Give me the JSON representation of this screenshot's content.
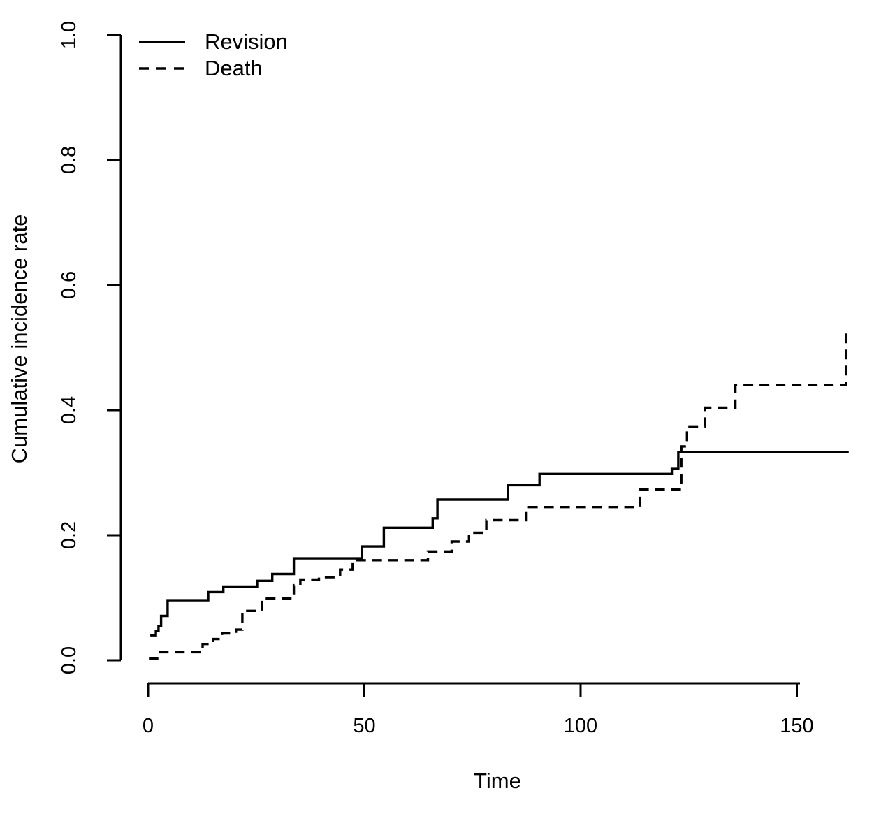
{
  "chart_data": {
    "type": "line",
    "subtype": "step",
    "title": "",
    "xlabel": "Time",
    "ylabel": "Cumulative incidence rate",
    "xlim": [
      0,
      162
    ],
    "ylim": [
      0,
      1
    ],
    "x_ticks": [
      0,
      50,
      100,
      150
    ],
    "y_ticks": [
      {
        "value": 0.0,
        "label": "0.0"
      },
      {
        "value": 0.2,
        "label": "0.2"
      },
      {
        "value": 0.4,
        "label": "0.4"
      },
      {
        "value": 0.6,
        "label": "0.6"
      },
      {
        "value": 0.8,
        "label": "0.8"
      },
      {
        "value": 1.0,
        "label": "1.0"
      }
    ],
    "grid": false,
    "legend": {
      "position": "top-left",
      "boxed": false,
      "entries": [
        {
          "label": "Revision",
          "line_style": "solid"
        },
        {
          "label": "Death",
          "line_style": "dashed"
        }
      ]
    },
    "colors": {
      "line": "#000000",
      "text": "#000000",
      "background": "#ffffff"
    },
    "points_format": [
      "time",
      "cumulative_incidence_rate"
    ],
    "series": [
      {
        "name": "Revision",
        "line_style": "solid",
        "end_time": 162,
        "points": [
          [
            0.5,
            0.04
          ],
          [
            1.8,
            0.047
          ],
          [
            2.4,
            0.055
          ],
          [
            3.0,
            0.071
          ],
          [
            4.5,
            0.096
          ],
          [
            13.9,
            0.109
          ],
          [
            17.4,
            0.118
          ],
          [
            25.2,
            0.127
          ],
          [
            28.7,
            0.138
          ],
          [
            33.7,
            0.163
          ],
          [
            49.4,
            0.182
          ],
          [
            54.5,
            0.212
          ],
          [
            65.8,
            0.227
          ],
          [
            66.9,
            0.257
          ],
          [
            83.2,
            0.28
          ],
          [
            90.5,
            0.298
          ],
          [
            121.1,
            0.306
          ],
          [
            122.6,
            0.333
          ]
        ]
      },
      {
        "name": "Death",
        "line_style": "dashed",
        "end_time": 162,
        "points": [
          [
            0.2,
            0.003
          ],
          [
            2.1,
            0.013
          ],
          [
            12.6,
            0.026
          ],
          [
            15.0,
            0.034
          ],
          [
            17.1,
            0.043
          ],
          [
            20.3,
            0.049
          ],
          [
            21.8,
            0.079
          ],
          [
            26.3,
            0.099
          ],
          [
            33.7,
            0.12
          ],
          [
            35.2,
            0.129
          ],
          [
            39.5,
            0.133
          ],
          [
            44.4,
            0.145
          ],
          [
            47.3,
            0.16
          ],
          [
            64.7,
            0.174
          ],
          [
            70.2,
            0.19
          ],
          [
            74.2,
            0.204
          ],
          [
            78.2,
            0.224
          ],
          [
            87.5,
            0.245
          ],
          [
            113.7,
            0.273
          ],
          [
            123.3,
            0.342
          ],
          [
            124.6,
            0.374
          ],
          [
            128.8,
            0.404
          ],
          [
            135.8,
            0.44
          ],
          [
            161.4,
            0.526
          ]
        ]
      }
    ]
  }
}
